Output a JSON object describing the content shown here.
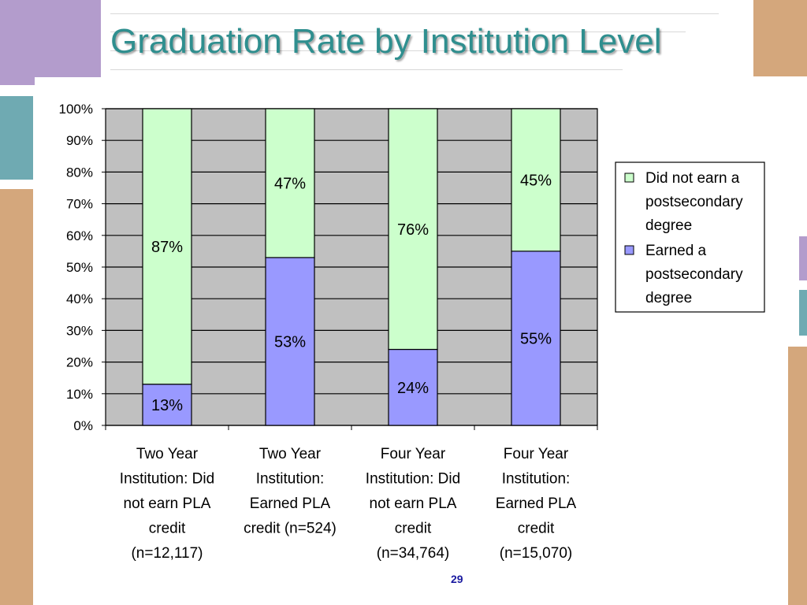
{
  "slide": {
    "title": "Graduation Rate by Institution Level",
    "page_number": "29"
  },
  "colors": {
    "title": "#2f8f8f",
    "plot_bg": "#c0c0c0",
    "did_not_earn": "#ccffcc",
    "earned": "#9999ff",
    "deco_tan": "#d4a77c",
    "deco_purple": "#b39ccc",
    "deco_teal": "#6faab2"
  },
  "chart_data": {
    "type": "bar",
    "stacked": true,
    "categories": [
      [
        "Two Year",
        "Institution: Did",
        "not earn PLA",
        "credit",
        "(n=12,117)"
      ],
      [
        "Two Year",
        "Institution:",
        "Earned PLA",
        "credit (n=524)"
      ],
      [
        "Four Year",
        "Institution: Did",
        "not earn PLA",
        "credit",
        "(n=34,764)"
      ],
      [
        "Four Year",
        "Institution:",
        "Earned PLA",
        "credit",
        "(n=15,070)"
      ]
    ],
    "series": [
      {
        "name": "Earned a postsecondary degree",
        "legend_lines": [
          "Earned a",
          "postsecondary",
          "degree"
        ],
        "values": [
          13,
          53,
          24,
          55
        ],
        "labels": [
          "13%",
          "53%",
          "24%",
          "55%"
        ]
      },
      {
        "name": "Did not earn a postsecondary degree",
        "legend_lines": [
          "Did not earn a",
          "postsecondary",
          "degree"
        ],
        "values": [
          87,
          47,
          76,
          45
        ],
        "labels": [
          "87%",
          "47%",
          "76%",
          "45%"
        ]
      }
    ],
    "ylim": [
      0,
      100
    ],
    "yticks": [
      "0%",
      "10%",
      "20%",
      "30%",
      "40%",
      "50%",
      "60%",
      "70%",
      "80%",
      "90%",
      "100%"
    ],
    "grid": true,
    "legend_position": "right"
  }
}
